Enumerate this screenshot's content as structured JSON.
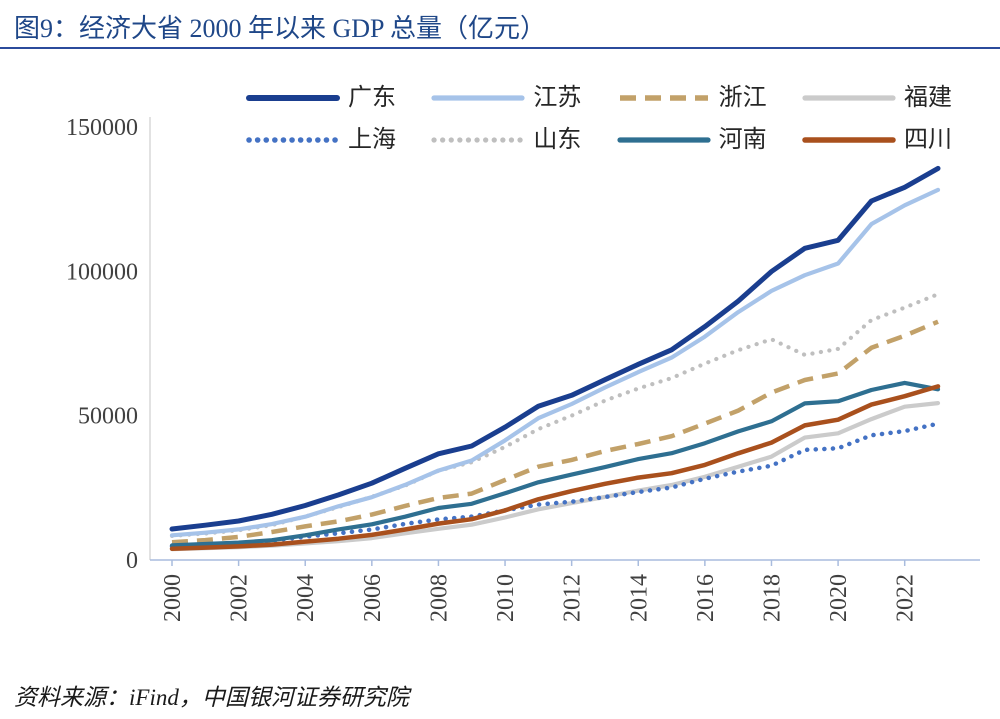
{
  "header": {
    "title": "图9：经济大省 2000 年以来 GDP 总量（亿元）"
  },
  "footer": {
    "source": "资料来源：iFind，中国银河证券研究院"
  },
  "colors": {
    "accent_blue": "#2B4B9C",
    "title_blue": "#1F4788",
    "axis_line": "#A9BCDE",
    "tick_text": "#404040"
  },
  "chart_data": {
    "type": "line",
    "title": "经济大省 2000 年以来 GDP 总量（亿元）",
    "unit": "亿元",
    "x": [
      2000,
      2001,
      2002,
      2003,
      2004,
      2005,
      2006,
      2007,
      2008,
      2009,
      2010,
      2011,
      2012,
      2013,
      2014,
      2015,
      2016,
      2017,
      2018,
      2019,
      2020,
      2021,
      2022,
      2023
    ],
    "x_tick_labels": [
      "2000",
      "2002",
      "2004",
      "2006",
      "2008",
      "2010",
      "2012",
      "2014",
      "2016",
      "2018",
      "2020",
      "2022"
    ],
    "ylim": [
      0,
      150000
    ],
    "y_ticks": [
      0,
      50000,
      100000,
      150000
    ],
    "y_tick_labels": [
      "0",
      "50000",
      "100000",
      "150000"
    ],
    "grid": false,
    "legend_position": "top",
    "series": [
      {
        "name": "广东",
        "color": "#1A3E8F",
        "style": "solid",
        "width": 5,
        "values": [
          10741,
          12039,
          13502,
          15845,
          18865,
          22557,
          26588,
          31777,
          36797,
          39483,
          46013,
          53246,
          57068,
          62475,
          67810,
          72813,
          80855,
          89705,
          99945,
          107987,
          110761,
          124370,
          129119,
          135673
        ]
      },
      {
        "name": "江苏",
        "color": "#A6C3E9",
        "style": "solid",
        "width": 4.2,
        "values": [
          8554,
          9457,
          10607,
          12443,
          15004,
          18599,
          21742,
          26018,
          30982,
          34457,
          41425,
          49110,
          54058,
          59753,
          65088,
          70116,
          77388,
          85870,
          93207,
          98656,
          102719,
          116364,
          122876,
          128222
        ]
      },
      {
        "name": "浙江",
        "color": "#C2A169",
        "style": "dashed",
        "width": 4.5,
        "values": [
          6141,
          6898,
          8003,
          9705,
          11648,
          13418,
          15718,
          18754,
          21463,
          22990,
          27722,
          32318,
          34665,
          37756,
          40173,
          42886,
          47251,
          51768,
          58003,
          62352,
          64613,
          73516,
          77715,
          82553
        ]
      },
      {
        "name": "福建",
        "color": "#CBCBCB",
        "style": "solid",
        "width": 4.2,
        "values": [
          3765,
          4073,
          4468,
          4984,
          5763,
          6555,
          7584,
          9249,
          10823,
          12237,
          14737,
          17560,
          19702,
          21868,
          24056,
          25980,
          28811,
          32298,
          35804,
          42395,
          43904,
          48810,
          53110,
          54355
        ]
      },
      {
        "name": "上海",
        "color": "#4472C4",
        "style": "dotted",
        "width": 4.5,
        "values": [
          4771,
          5210,
          5741,
          6694,
          8073,
          9248,
          10572,
          12494,
          14070,
          15046,
          17166,
          19196,
          20182,
          21818,
          23568,
          25123,
          28179,
          30633,
          32680,
          38155,
          38701,
          43215,
          44653,
          47219
        ]
      },
      {
        "name": "山东",
        "color": "#BFBFBF",
        "style": "dotted",
        "width": 4.2,
        "values": [
          8338,
          9195,
          10276,
          12078,
          15022,
          18367,
          21900,
          25777,
          30933,
          33897,
          39170,
          45362,
          50013,
          55230,
          59426,
          63002,
          68024,
          72678,
          76470,
          71068,
          73129,
          83096,
          87435,
          92069
        ]
      },
      {
        "name": "河南",
        "color": "#2E6F91",
        "style": "solid",
        "width": 4.2,
        "values": [
          5053,
          5533,
          6035,
          6868,
          8554,
          10587,
          12363,
          15012,
          18019,
          19480,
          23092,
          26931,
          29599,
          32191,
          34938,
          37002,
          40472,
          44553,
          48056,
          54259,
          54997,
          58887,
          61345,
          59132
        ]
      },
      {
        "name": "四川",
        "color": "#A9501D",
        "style": "solid",
        "width": 4.5,
        "values": [
          3928,
          4293,
          4725,
          5333,
          6380,
          7385,
          8690,
          10562,
          12601,
          14151,
          17185,
          21027,
          23873,
          26392,
          28537,
          30053,
          32935,
          36980,
          40678,
          46616,
          48599,
          53851,
          56750,
          60133
        ]
      }
    ],
    "draw_order": [
      "福建",
      "山东",
      "上海",
      "浙江",
      "河南",
      "四川",
      "江苏",
      "广东"
    ]
  }
}
